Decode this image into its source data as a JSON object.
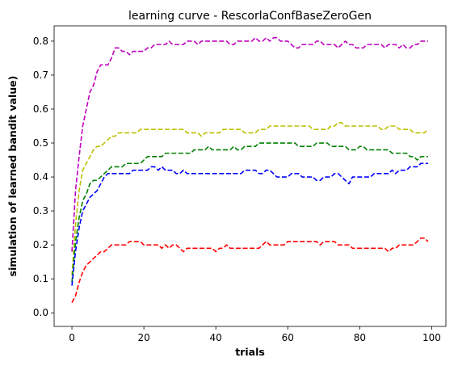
{
  "chart_data": {
    "type": "line",
    "title": "learning curve - RescorlaConfBaseZeroGen",
    "xlabel": "trials",
    "ylabel": "simulation of learned bandit value)",
    "xlim": [
      -4.95,
      103.95
    ],
    "ylim": [
      -0.04,
      0.845
    ],
    "xticks": [
      "0",
      "20",
      "40",
      "60",
      "80",
      "100"
    ],
    "yticks": [
      "0.0",
      "0.1",
      "0.2",
      "0.3",
      "0.4",
      "0.5",
      "0.6",
      "0.7",
      "0.8"
    ],
    "line_style": "dashed",
    "grid": false,
    "legend": "none",
    "x": [
      0,
      1,
      2,
      3,
      4,
      5,
      6,
      7,
      8,
      9,
      10,
      11,
      12,
      13,
      14,
      15,
      16,
      17,
      18,
      19,
      20,
      21,
      22,
      23,
      24,
      25,
      26,
      27,
      28,
      29,
      30,
      31,
      32,
      33,
      34,
      35,
      36,
      37,
      38,
      39,
      40,
      41,
      42,
      43,
      44,
      45,
      46,
      47,
      48,
      49,
      50,
      51,
      52,
      53,
      54,
      55,
      56,
      57,
      58,
      59,
      60,
      61,
      62,
      63,
      64,
      65,
      66,
      67,
      68,
      69,
      70,
      71,
      72,
      73,
      74,
      75,
      76,
      77,
      78,
      79,
      80,
      81,
      82,
      83,
      84,
      85,
      86,
      87,
      88,
      89,
      90,
      91,
      92,
      93,
      94,
      95,
      96,
      97,
      98,
      99
    ],
    "series": [
      {
        "color": "#bf00bf",
        "values": [
          0.18,
          0.36,
          0.46,
          0.55,
          0.6,
          0.65,
          0.67,
          0.71,
          0.73,
          0.73,
          0.73,
          0.75,
          0.78,
          0.78,
          0.77,
          0.77,
          0.76,
          0.77,
          0.77,
          0.77,
          0.77,
          0.78,
          0.78,
          0.79,
          0.79,
          0.79,
          0.79,
          0.8,
          0.79,
          0.79,
          0.79,
          0.79,
          0.8,
          0.8,
          0.8,
          0.79,
          0.8,
          0.8,
          0.8,
          0.8,
          0.8,
          0.8,
          0.8,
          0.8,
          0.79,
          0.79,
          0.8,
          0.8,
          0.8,
          0.8,
          0.8,
          0.81,
          0.8,
          0.8,
          0.81,
          0.8,
          0.81,
          0.81,
          0.8,
          0.8,
          0.8,
          0.79,
          0.78,
          0.78,
          0.79,
          0.79,
          0.79,
          0.79,
          0.8,
          0.8,
          0.79,
          0.79,
          0.79,
          0.79,
          0.78,
          0.79,
          0.8,
          0.79,
          0.79,
          0.78,
          0.78,
          0.78,
          0.79,
          0.79,
          0.79,
          0.79,
          0.79,
          0.78,
          0.79,
          0.79,
          0.79,
          0.78,
          0.79,
          0.78,
          0.78,
          0.79,
          0.79,
          0.8,
          0.8,
          0.8
        ]
      },
      {
        "color": "#bfbf00",
        "values": [
          0.11,
          0.26,
          0.36,
          0.42,
          0.44,
          0.46,
          0.48,
          0.49,
          0.49,
          0.5,
          0.51,
          0.52,
          0.52,
          0.53,
          0.53,
          0.53,
          0.53,
          0.53,
          0.53,
          0.54,
          0.54,
          0.54,
          0.54,
          0.54,
          0.54,
          0.54,
          0.54,
          0.54,
          0.54,
          0.54,
          0.54,
          0.54,
          0.53,
          0.53,
          0.53,
          0.53,
          0.52,
          0.53,
          0.53,
          0.53,
          0.53,
          0.53,
          0.54,
          0.54,
          0.54,
          0.54,
          0.54,
          0.54,
          0.53,
          0.53,
          0.53,
          0.53,
          0.54,
          0.54,
          0.54,
          0.55,
          0.55,
          0.55,
          0.55,
          0.55,
          0.55,
          0.55,
          0.55,
          0.55,
          0.55,
          0.55,
          0.55,
          0.54,
          0.54,
          0.54,
          0.54,
          0.54,
          0.55,
          0.55,
          0.56,
          0.56,
          0.55,
          0.55,
          0.55,
          0.55,
          0.55,
          0.55,
          0.55,
          0.55,
          0.55,
          0.55,
          0.54,
          0.54,
          0.55,
          0.55,
          0.55,
          0.54,
          0.54,
          0.54,
          0.54,
          0.53,
          0.53,
          0.53,
          0.53,
          0.54
        ]
      },
      {
        "color": "#008000",
        "values": [
          0.09,
          0.21,
          0.28,
          0.33,
          0.35,
          0.38,
          0.39,
          0.39,
          0.4,
          0.41,
          0.42,
          0.43,
          0.43,
          0.43,
          0.43,
          0.44,
          0.44,
          0.44,
          0.44,
          0.44,
          0.45,
          0.46,
          0.46,
          0.46,
          0.46,
          0.46,
          0.47,
          0.47,
          0.47,
          0.47,
          0.47,
          0.47,
          0.47,
          0.47,
          0.48,
          0.48,
          0.48,
          0.48,
          0.49,
          0.48,
          0.48,
          0.48,
          0.48,
          0.48,
          0.48,
          0.49,
          0.48,
          0.48,
          0.49,
          0.49,
          0.49,
          0.49,
          0.5,
          0.5,
          0.5,
          0.5,
          0.5,
          0.5,
          0.5,
          0.5,
          0.5,
          0.5,
          0.5,
          0.49,
          0.49,
          0.49,
          0.49,
          0.49,
          0.5,
          0.5,
          0.5,
          0.5,
          0.49,
          0.49,
          0.49,
          0.49,
          0.49,
          0.48,
          0.48,
          0.48,
          0.49,
          0.49,
          0.48,
          0.48,
          0.48,
          0.48,
          0.48,
          0.48,
          0.48,
          0.47,
          0.47,
          0.47,
          0.47,
          0.47,
          0.46,
          0.46,
          0.45,
          0.46,
          0.46,
          0.46
        ]
      },
      {
        "color": "#0000ff",
        "values": [
          0.08,
          0.18,
          0.25,
          0.3,
          0.32,
          0.34,
          0.35,
          0.36,
          0.38,
          0.4,
          0.41,
          0.41,
          0.41,
          0.41,
          0.41,
          0.41,
          0.41,
          0.42,
          0.42,
          0.42,
          0.42,
          0.42,
          0.43,
          0.43,
          0.42,
          0.43,
          0.42,
          0.42,
          0.42,
          0.41,
          0.41,
          0.42,
          0.41,
          0.41,
          0.41,
          0.41,
          0.41,
          0.41,
          0.41,
          0.41,
          0.41,
          0.41,
          0.41,
          0.41,
          0.41,
          0.41,
          0.41,
          0.41,
          0.42,
          0.42,
          0.42,
          0.42,
          0.41,
          0.41,
          0.42,
          0.42,
          0.41,
          0.4,
          0.4,
          0.4,
          0.4,
          0.41,
          0.41,
          0.41,
          0.4,
          0.4,
          0.4,
          0.4,
          0.39,
          0.39,
          0.4,
          0.4,
          0.4,
          0.41,
          0.41,
          0.4,
          0.39,
          0.38,
          0.4,
          0.4,
          0.4,
          0.4,
          0.4,
          0.4,
          0.41,
          0.41,
          0.41,
          0.41,
          0.41,
          0.42,
          0.41,
          0.42,
          0.42,
          0.42,
          0.43,
          0.43,
          0.43,
          0.44,
          0.44,
          0.44
        ]
      },
      {
        "color": "#ff0000",
        "values": [
          0.03,
          0.05,
          0.09,
          0.12,
          0.14,
          0.15,
          0.16,
          0.17,
          0.18,
          0.18,
          0.19,
          0.2,
          0.2,
          0.2,
          0.2,
          0.2,
          0.21,
          0.21,
          0.21,
          0.21,
          0.2,
          0.2,
          0.2,
          0.2,
          0.2,
          0.19,
          0.2,
          0.19,
          0.2,
          0.2,
          0.19,
          0.18,
          0.19,
          0.19,
          0.19,
          0.19,
          0.19,
          0.19,
          0.19,
          0.19,
          0.18,
          0.19,
          0.19,
          0.2,
          0.19,
          0.19,
          0.19,
          0.19,
          0.19,
          0.19,
          0.19,
          0.19,
          0.19,
          0.2,
          0.21,
          0.2,
          0.2,
          0.2,
          0.2,
          0.2,
          0.21,
          0.21,
          0.21,
          0.21,
          0.21,
          0.21,
          0.21,
          0.21,
          0.21,
          0.2,
          0.21,
          0.21,
          0.21,
          0.21,
          0.2,
          0.2,
          0.2,
          0.2,
          0.19,
          0.19,
          0.19,
          0.19,
          0.19,
          0.19,
          0.19,
          0.19,
          0.19,
          0.19,
          0.18,
          0.19,
          0.19,
          0.2,
          0.2,
          0.2,
          0.2,
          0.2,
          0.21,
          0.22,
          0.22,
          0.21
        ]
      }
    ]
  }
}
